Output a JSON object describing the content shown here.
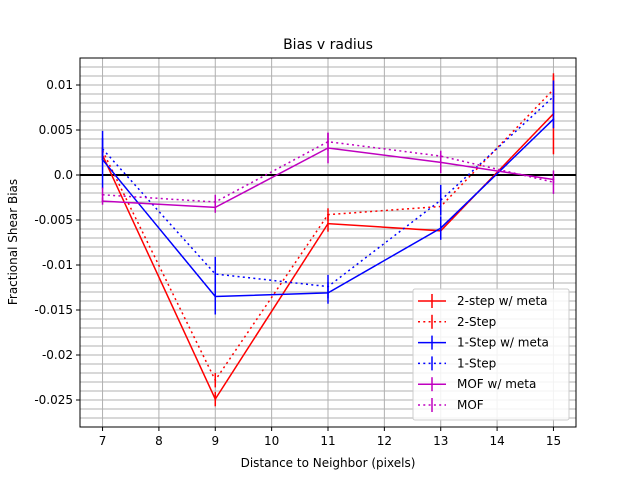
{
  "chart_data": {
    "type": "line",
    "title": "Bias v radius",
    "xlabel": "Distance to Neighbor (pixels)",
    "ylabel": "Fractional Shear Bias",
    "xlim": [
      6.6,
      15.4
    ],
    "ylim": [
      -0.028,
      0.013
    ],
    "x_ticks": [
      7,
      8,
      9,
      10,
      11,
      12,
      13,
      14,
      15
    ],
    "x_tick_labels": [
      "7",
      "8",
      "9",
      "10",
      "11",
      "12",
      "13",
      "14",
      "15"
    ],
    "y_ticks": [
      0.01,
      0.005,
      0.0,
      -0.005,
      -0.01,
      -0.015,
      -0.02,
      -0.025
    ],
    "y_tick_labels": [
      "0.01",
      "0.005",
      "0.0",
      "-0.005",
      "-0.01",
      "-0.015",
      "-0.02",
      "-0.025"
    ],
    "grid": true,
    "zero_line": true,
    "legend_position": "lower-right",
    "x": [
      7,
      9,
      11,
      13,
      15
    ],
    "series": [
      {
        "name": "2-step w/ meta",
        "color": "#ff0000",
        "style": "solid",
        "values": [
          0.0022,
          -0.0249,
          -0.0054,
          -0.0062,
          0.0068
        ],
        "errors": [
          0.0005,
          0.0008,
          0.0009,
          0.0007,
          0.0045
        ]
      },
      {
        "name": " 2-Step",
        "color": "#ff0000",
        "style": "dotted",
        "values": [
          0.0027,
          -0.0228,
          -0.0044,
          -0.0035,
          0.0095
        ],
        "errors": [
          0.0004,
          0.0008,
          0.0007,
          0.0006,
          0.0014
        ]
      },
      {
        "name": "1-Step w/ meta",
        "color": "#0000ff",
        "style": "solid",
        "values": [
          0.0017,
          -0.0135,
          -0.0131,
          -0.0059,
          0.0062
        ],
        "errors": [
          0.0032,
          0.002,
          0.0012,
          0.0013,
          0.001
        ]
      },
      {
        "name": "1-Step",
        "color": "#0000ff",
        "style": "dotted",
        "values": [
          0.0029,
          -0.011,
          -0.0124,
          -0.0028,
          0.0087
        ],
        "errors": [
          0.0012,
          0.0019,
          0.0013,
          0.0017,
          0.0018
        ]
      },
      {
        "name": "MOF w/ meta",
        "color": "#bf00bf",
        "style": "solid",
        "values": [
          -0.0029,
          -0.0036,
          0.003,
          0.0014,
          -0.0005
        ],
        "errors": [
          0.0004,
          0.0006,
          0.0017,
          0.0012,
          0.0003
        ]
      },
      {
        "name": "MOF",
        "color": "#bf00bf",
        "style": "dotted",
        "values": [
          -0.0022,
          -0.003,
          0.0037,
          0.0021,
          -0.0008
        ],
        "errors": [
          0.0008,
          0.0008,
          0.001,
          0.0006,
          0.0013
        ]
      }
    ]
  }
}
